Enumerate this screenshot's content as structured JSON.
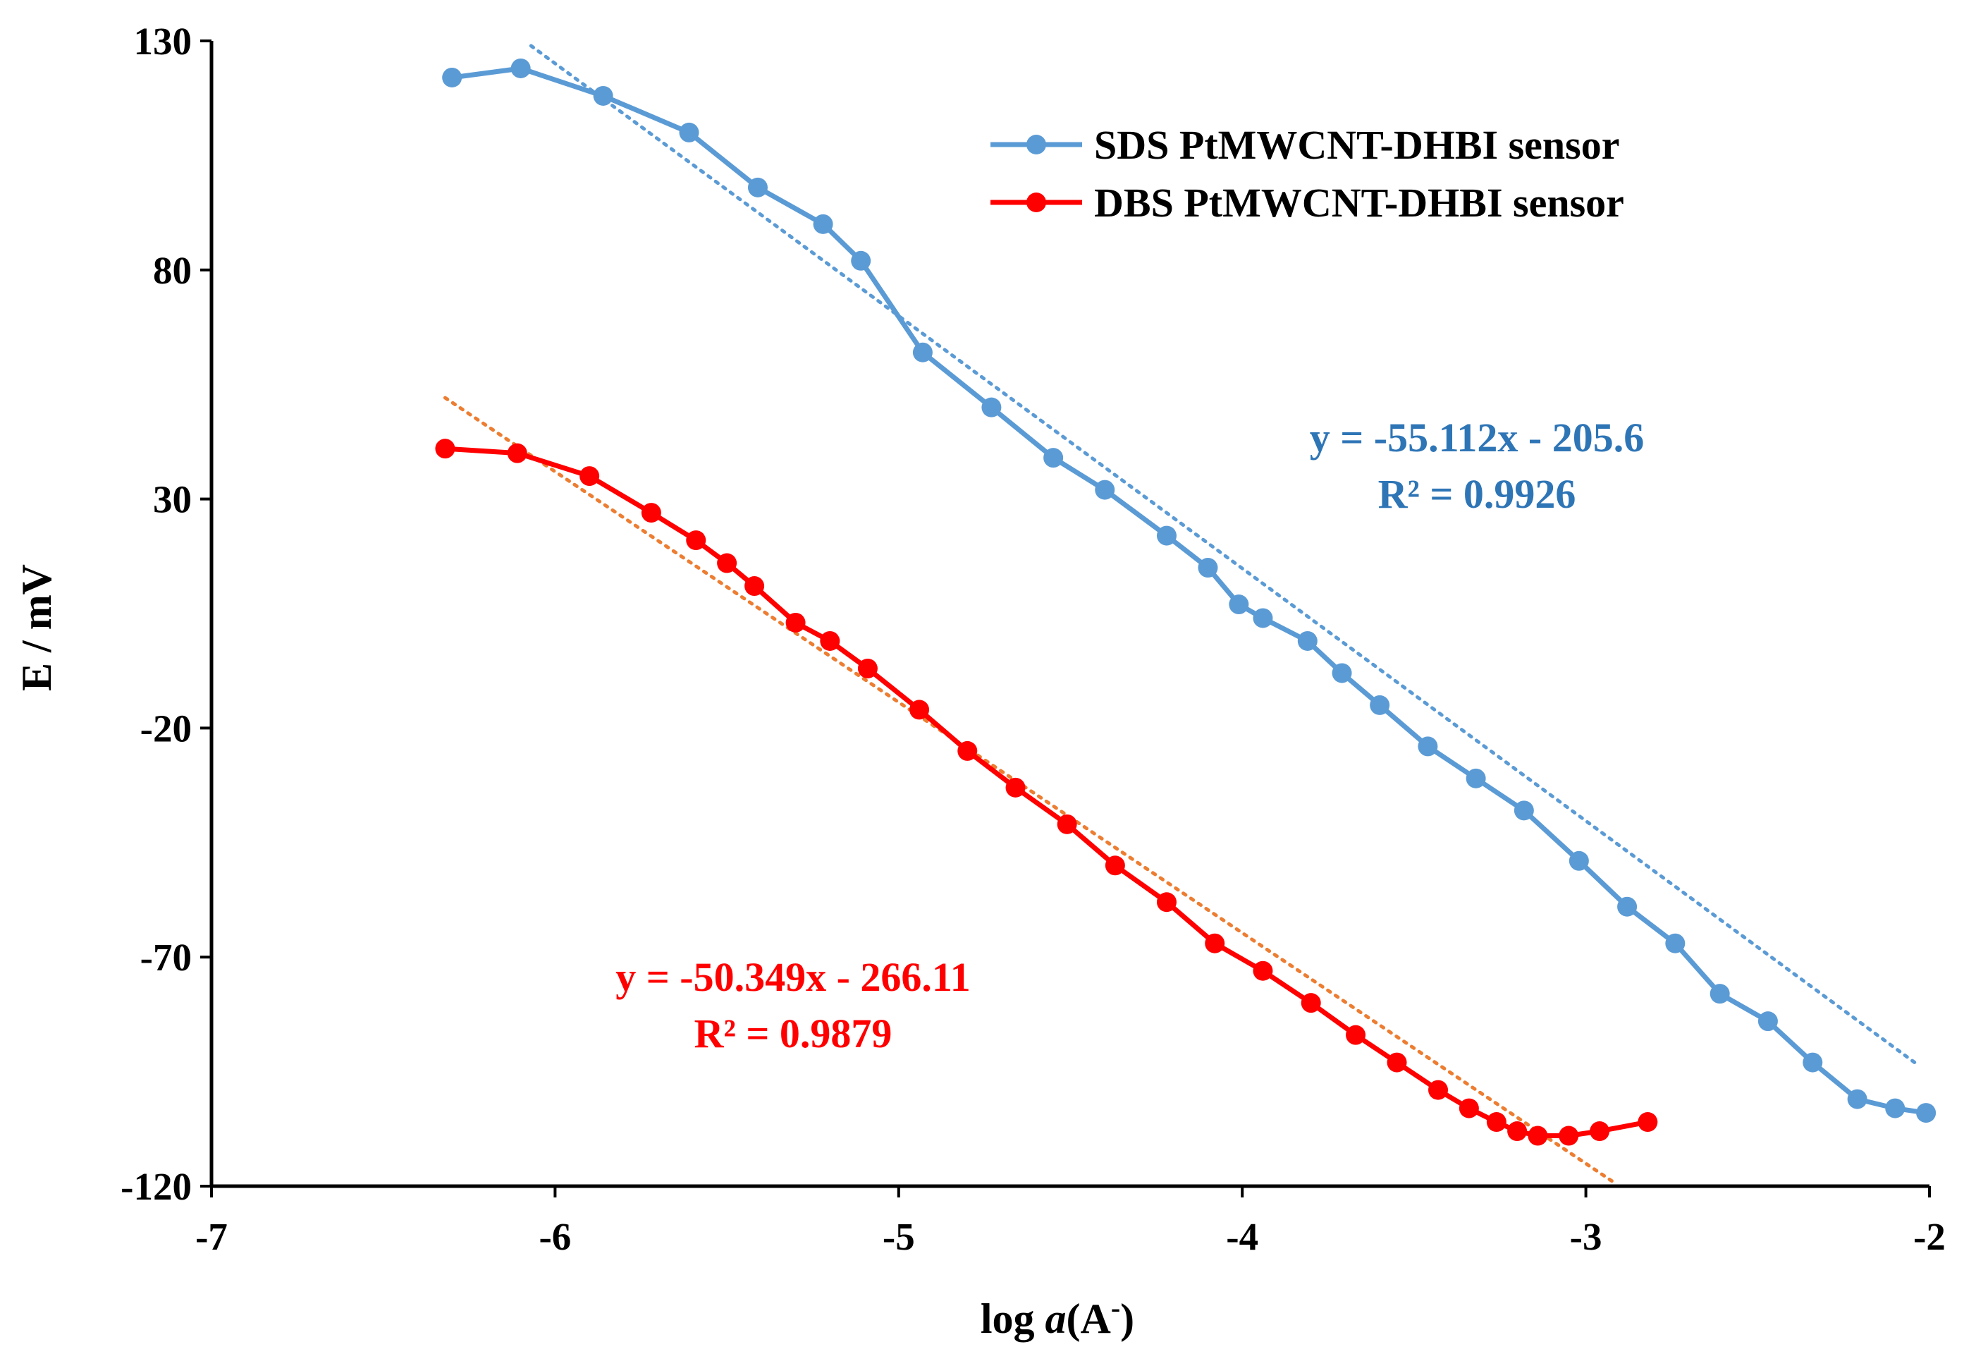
{
  "chart_data": {
    "type": "line",
    "title": "",
    "xlabel": "log a(A⁻)",
    "xlabel_parts": {
      "prefix": "log ",
      "italic": "a",
      "open": "(A",
      "sup": "-",
      "close": ")"
    },
    "ylabel": "E / mV",
    "xlim": [
      -7,
      -2
    ],
    "ylim": [
      -120,
      130
    ],
    "x_ticks": [
      -7,
      -6,
      -5,
      -4,
      -3,
      -2
    ],
    "x_tick_labels": [
      "-7",
      "-6",
      "-5",
      "-4",
      "-3",
      "-2"
    ],
    "y_ticks": [
      130,
      80,
      30,
      -20,
      -70,
      -120
    ],
    "y_tick_labels": [
      "130",
      "80",
      "30",
      "-20",
      "-70",
      "-120"
    ],
    "grid": false,
    "legend_position": "top-right",
    "series": [
      {
        "name": "SDS PtMWCNT-DHBI sensor",
        "color": "#5B9BD5",
        "x": [
          -6.3,
          -6.1,
          -5.86,
          -5.61,
          -5.41,
          -5.22,
          -5.11,
          -4.93,
          -4.73,
          -4.55,
          -4.4,
          -4.22,
          -4.1,
          -4.01,
          -3.94,
          -3.81,
          -3.71,
          -3.6,
          -3.46,
          -3.32,
          -3.18,
          -3.02,
          -2.88,
          -2.74,
          -2.61,
          -2.47,
          -2.34,
          -2.21,
          -2.1,
          -2.01
        ],
        "values": [
          122,
          124,
          118,
          110,
          98,
          90,
          82,
          62,
          50,
          39,
          32,
          22,
          15,
          7,
          4,
          -1,
          -8,
          -15,
          -24,
          -31,
          -38,
          -49,
          -59,
          -67,
          -78,
          -84,
          -93,
          -101,
          -103,
          -104
        ]
      },
      {
        "name": "DBS PtMWCNT-DHBI sensor",
        "color": "#FF0000",
        "x": [
          -6.32,
          -6.11,
          -5.9,
          -5.72,
          -5.59,
          -5.5,
          -5.42,
          -5.3,
          -5.2,
          -5.09,
          -4.94,
          -4.8,
          -4.66,
          -4.51,
          -4.37,
          -4.22,
          -4.08,
          -3.94,
          -3.8,
          -3.67,
          -3.55,
          -3.43,
          -3.34,
          -3.26,
          -3.2,
          -3.14,
          -3.05,
          -2.96,
          -2.82
        ],
        "values": [
          41,
          40,
          35,
          27,
          21,
          16,
          11,
          3,
          -1,
          -7,
          -16,
          -25,
          -33,
          -41,
          -50,
          -58,
          -67,
          -73,
          -80,
          -87,
          -93,
          -99,
          -103,
          -106,
          -108,
          -109,
          -109,
          -108,
          -106
        ]
      }
    ],
    "trendlines": [
      {
        "series": "SDS PtMWCNT-DHBI sensor",
        "color": "#5B9BD5",
        "x_range": [
          -6.07,
          -2.03
        ],
        "slope": -55.112,
        "intercept": -205.6,
        "equation": "y = -55.112x - 205.6",
        "r2": "R² = 0.9926"
      },
      {
        "series": "DBS PtMWCNT-DHBI sensor",
        "color": "#ED7D31",
        "x_range": [
          -6.32,
          -2.91
        ],
        "slope": -50.349,
        "intercept": -266.11,
        "equation": "y = -50.349x - 266.11",
        "r2": "R² = 0.9879"
      }
    ],
    "annotations": [
      {
        "name": "sds-equation",
        "color": "#2E75B6",
        "lines": [
          "y = -55.112x - 205.6",
          "R² = 0.9926"
        ]
      },
      {
        "name": "dbs-equation",
        "color": "#FF0000",
        "lines": [
          "y = -50.349x - 266.11",
          "R² = 0.9879"
        ]
      }
    ]
  }
}
